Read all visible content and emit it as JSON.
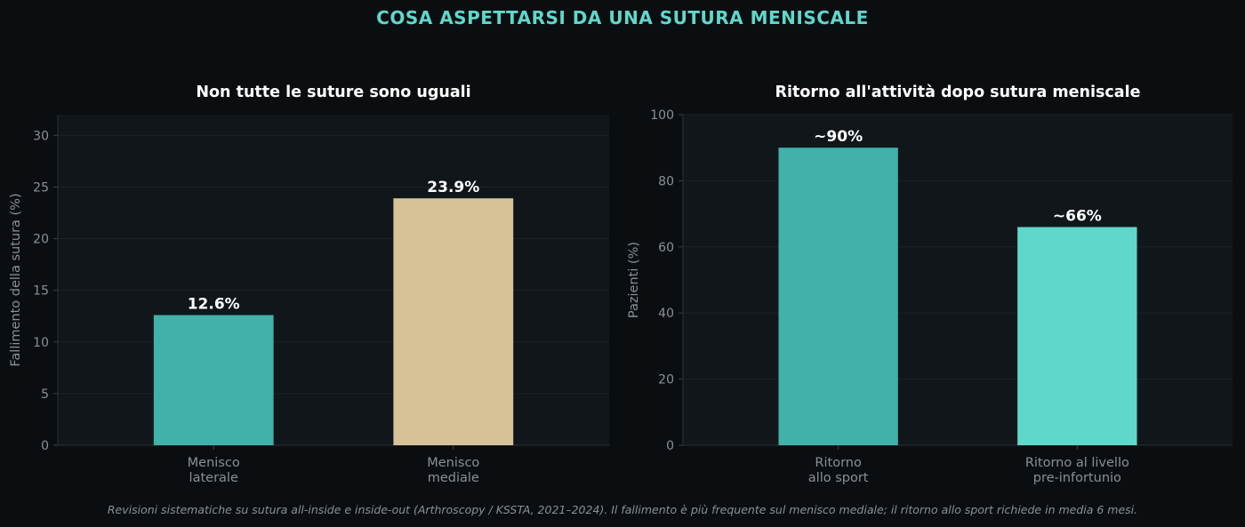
{
  "suptitle": "COSA ASPETTARSI DA UNA SUTURA MENISCALE",
  "footnote": "Revisioni sistematiche su sutura all-inside e inside-out (Arthroscopy / KSSTA, 2021–2024). Il fallimento è più frequente sul menisco mediale; il ritorno allo sport richiede in media 6 mesi.",
  "colors": {
    "background": "#0b0e11",
    "plot_background": "#11161a",
    "teal": "#41b1aa",
    "light_teal": "#5fd8cb",
    "sand": "#d8c399",
    "text": "#ffffff",
    "muted": "#8a9096"
  },
  "chart_data": [
    {
      "type": "bar",
      "title": "Non tutte le suture sono uguali",
      "ylabel": "Fallimento della sutura (%)",
      "xlabel": "",
      "categories": [
        [
          "Menisco",
          "laterale"
        ],
        [
          "Menisco",
          "mediale"
        ]
      ],
      "values": [
        12.6,
        23.9
      ],
      "value_labels": [
        "12.6%",
        "23.9%"
      ],
      "bar_colors": [
        "#41b1aa",
        "#d8c399"
      ],
      "ylim": [
        0,
        32
      ],
      "yticks": [
        0,
        5,
        10,
        15,
        20,
        25,
        30
      ],
      "grid": true,
      "legend": "none"
    },
    {
      "type": "bar",
      "title": "Ritorno all'attività dopo sutura meniscale",
      "ylabel": "Pazienti (%)",
      "xlabel": "",
      "categories": [
        [
          "Ritorno",
          "allo sport"
        ],
        [
          "Ritorno al livello",
          "pre-infortunio"
        ]
      ],
      "values": [
        90,
        66
      ],
      "value_labels": [
        "~90%",
        "~66%"
      ],
      "bar_colors": [
        "#41b1aa",
        "#5fd8cb"
      ],
      "ylim": [
        0,
        100
      ],
      "yticks": [
        0,
        20,
        40,
        60,
        80,
        100
      ],
      "grid": true,
      "legend": "none"
    }
  ]
}
